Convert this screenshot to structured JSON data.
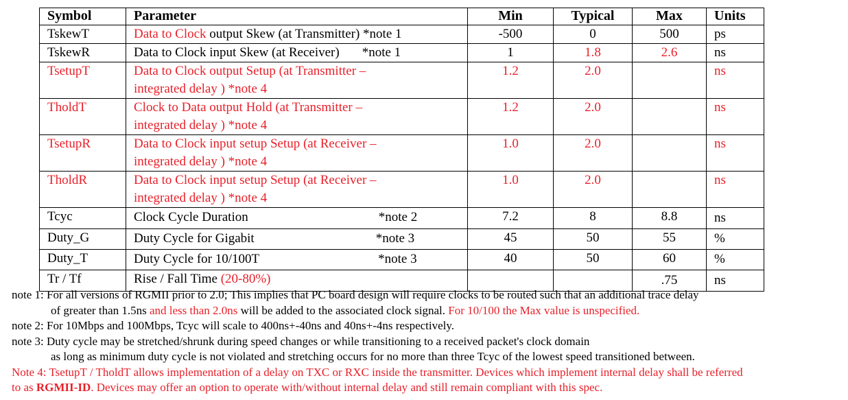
{
  "table": {
    "headers": {
      "symbol": "Symbol",
      "parameter": "Parameter",
      "min": "Min",
      "typical": "Typical",
      "max": "Max",
      "units": "Units"
    },
    "rows": [
      {
        "symbol": "TskewT",
        "param_red": "Data to Clock",
        "param_rest": " output Skew (at Transmitter) *note 1",
        "min": "-500",
        "typ": "0",
        "max": "500",
        "units": "ps"
      },
      {
        "symbol": "TskewR",
        "param": "Data to Clock input Skew (at Receiver)",
        "note": "*note 1",
        "min": "1",
        "typ": "1.8",
        "max": "2.6",
        "units": "ns"
      },
      {
        "symbol": "TsetupT",
        "param_l1": "Data to Clock output Setup (at Transmitter –",
        "param_l2": "integrated delay ) *note 4",
        "min": "1.2",
        "typ": "2.0",
        "max": "",
        "units": "ns"
      },
      {
        "symbol": "TholdT",
        "param_l1": "Clock to Data output Hold (at Transmitter –",
        "param_l2": "integrated delay ) *note 4",
        "min": "1.2",
        "typ": "2.0",
        "max": "",
        "units": "ns"
      },
      {
        "symbol": "TsetupR",
        "param_l1": "Data to Clock input setup Setup (at Receiver –",
        "param_l2": "integrated delay ) *note 4",
        "min": "1.0",
        "typ": "2.0",
        "max": "",
        "units": "ns"
      },
      {
        "symbol": "TholdR",
        "param_l1": "Data to Clock input setup Setup (at Receiver –",
        "param_l2": "integrated delay ) *note 4",
        "min": "1.0",
        "typ": "2.0",
        "max": "",
        "units": "ns"
      },
      {
        "symbol": "Tcyc",
        "param": "Clock Cycle Duration",
        "note": "*note 2",
        "min": "7.2",
        "typ": "8",
        "max": "8.8",
        "units": "ns"
      },
      {
        "symbol": "Duty_G",
        "param": "Duty Cycle  for Gigabit",
        "note": "*note 3",
        "min": "45",
        "typ": "50",
        "max": "55",
        "units": "%"
      },
      {
        "symbol": "Duty_T",
        "param": "Duty Cycle for 10/100T",
        "note": "*note 3",
        "min": "40",
        "typ": "50",
        "max": "60",
        "units": "%"
      },
      {
        "symbol": "Tr / Tf",
        "param": "Rise / Fall Time ",
        "param_red": "(20-80%)",
        "min": "",
        "typ": "",
        "max": ".75",
        "units": "ns"
      }
    ]
  },
  "notes": {
    "n1_l1": "note 1:  For all versions of RGMII prior to 2.0; This implies that PC board design will require clocks to be routed such that an additional trace delay",
    "n1_l2a": "of greater than 1.5ns ",
    "n1_l2b": "and less than 2.0ns",
    "n1_l2c": " will be added to the associated clock signal.  ",
    "n1_l2d": "For 10/100 the Max value is unspecified.",
    "n2": "note 2: For 10Mbps and 100Mbps,  Tcyc will scale to 400ns+-40ns and 40ns+-4ns respectively.",
    "n3_l1": "note 3: Duty cycle may be stretched/shrunk during speed changes or while transitioning to a received packet's clock domain",
    "n3_l2": "as long as minimum duty cycle is not violated and stretching occurs for no more than three Tcyc of the lowest speed transitioned between.",
    "n4_l1": "Note 4: TsetupT / TholdT allows implementation of a delay on TXC or RXC inside the transmitter. Devices which implement internal delay shall be referred",
    "n4_l2a": "to as ",
    "n4_l2b": "RGMII-ID",
    "n4_l2c": ". Devices may offer an option to operate with/without internal delay and still remain compliant with this spec."
  }
}
